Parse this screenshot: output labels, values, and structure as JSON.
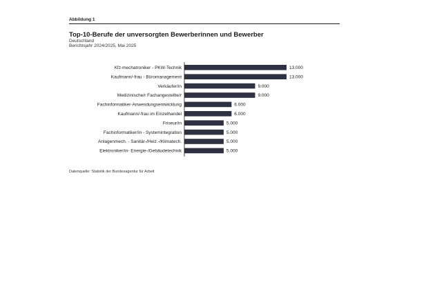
{
  "figure_label": "Abbildung 1",
  "subtitle_region": "Deutschland",
  "subtitle_period": "Berichtsjahr 2024/2025, Mai 2025",
  "source": "Datenquelle: Statistik der Bundesagentur für Arbeit",
  "colors": {
    "bar": "#2d3142",
    "axis": "#1a1a1a",
    "rule": "#1a1a1a"
  },
  "chart_data": {
    "type": "bar",
    "orientation": "horizontal",
    "title": "Top-10-Berufe der unversorgten Bewerberinnen und Bewerber",
    "categories": [
      "Kfz-mechatroniker - PKW-Technik",
      "Kaufmann/-frau - Büromanagement",
      "Verkäufer/in",
      "Medizinische/r Fachangestellte/r",
      "Fachinformatiker-Anwendungsentwicklung",
      "Kaufmann/-frau im Einzelhandel",
      "Friseur/in",
      "Fachinformatiker/in - Systemintegration",
      "Anlagenmech. - Sanitär-/Heiz.-/Klimatech.",
      "Elektroniker/in- Energie-/Gebäudetechnik"
    ],
    "values": [
      13000,
      13000,
      9000,
      9000,
      6000,
      6000,
      5000,
      5000,
      5000,
      5000
    ],
    "value_labels": [
      "13.000",
      "13.000",
      "9.000",
      "9.000",
      "6.000",
      "6.000",
      "5.000",
      "5.000",
      "5.000",
      "5.000"
    ],
    "xlim": [
      0,
      13000
    ],
    "grid": false,
    "legend": "none"
  }
}
